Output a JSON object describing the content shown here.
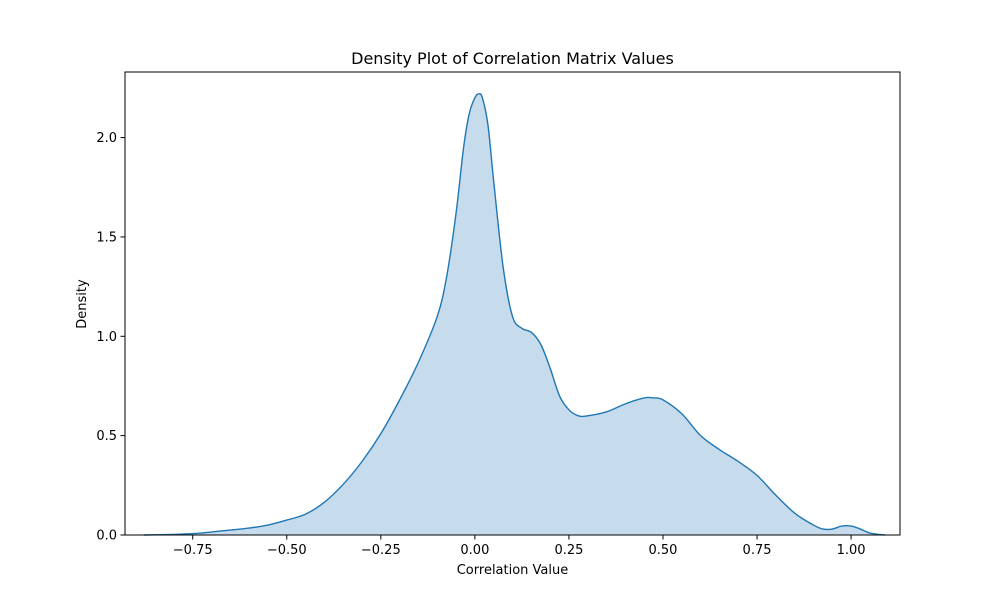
{
  "chart_data": {
    "type": "area",
    "title": "Density Plot of Correlation Matrix Values",
    "xlabel": "Correlation Value",
    "ylabel": "Density",
    "xlim": [
      -0.93,
      1.13
    ],
    "ylim": [
      0,
      2.33
    ],
    "xticks": [
      -0.75,
      -0.5,
      -0.25,
      0.0,
      0.25,
      0.5,
      0.75,
      1.0
    ],
    "xtick_labels": [
      "−0.75",
      "−0.50",
      "−0.25",
      "0.00",
      "0.25",
      "0.50",
      "0.75",
      "1.00"
    ],
    "yticks": [
      0.0,
      0.5,
      1.0,
      1.5,
      2.0
    ],
    "ytick_labels": [
      "0.0",
      "0.5",
      "1.0",
      "1.5",
      "2.0"
    ],
    "grid": false,
    "line_color": "#1f77b4",
    "fill_color": "#c6dbec",
    "x": [
      -0.88,
      -0.8,
      -0.75,
      -0.7,
      -0.65,
      -0.6,
      -0.55,
      -0.5,
      -0.45,
      -0.4,
      -0.35,
      -0.3,
      -0.25,
      -0.2,
      -0.15,
      -0.1,
      -0.075,
      -0.05,
      -0.03,
      -0.015,
      0.0,
      0.01,
      0.02,
      0.035,
      0.05,
      0.075,
      0.1,
      0.125,
      0.15,
      0.175,
      0.2,
      0.225,
      0.25,
      0.275,
      0.3,
      0.35,
      0.4,
      0.45,
      0.475,
      0.5,
      0.55,
      0.6,
      0.65,
      0.7,
      0.75,
      0.8,
      0.85,
      0.9,
      0.925,
      0.95,
      0.975,
      1.0,
      1.025,
      1.05,
      1.09
    ],
    "y": [
      0.0,
      0.003,
      0.007,
      0.015,
      0.025,
      0.035,
      0.05,
      0.075,
      0.105,
      0.165,
      0.255,
      0.37,
      0.51,
      0.68,
      0.87,
      1.1,
      1.3,
      1.62,
      1.95,
      2.12,
      2.2,
      2.22,
      2.2,
      2.06,
      1.78,
      1.35,
      1.1,
      1.04,
      1.02,
      0.96,
      0.84,
      0.7,
      0.63,
      0.6,
      0.6,
      0.62,
      0.66,
      0.69,
      0.69,
      0.68,
      0.61,
      0.5,
      0.43,
      0.37,
      0.3,
      0.2,
      0.11,
      0.05,
      0.03,
      0.03,
      0.045,
      0.045,
      0.03,
      0.01,
      0.0
    ]
  }
}
